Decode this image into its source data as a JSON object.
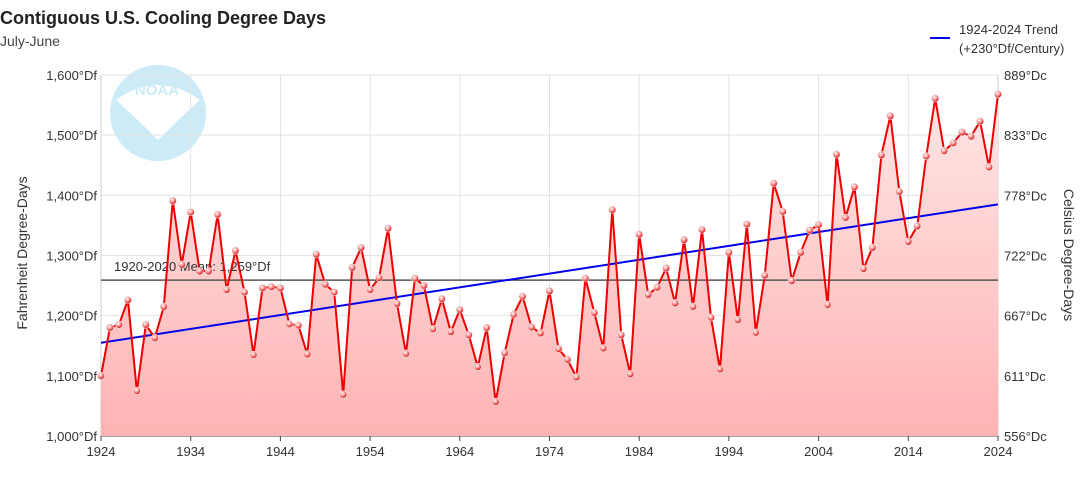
{
  "header": {
    "title": "Contiguous U.S. Cooling Degree Days",
    "subtitle": "July-June"
  },
  "legend": {
    "line1": "1924-2024 Trend",
    "line2": "(+230°Df/Century)"
  },
  "logo": {
    "text": "NOAA"
  },
  "colors": {
    "series": "#ee0000",
    "trend": "#0000ee",
    "mean": "#555555",
    "fill_top": "#ffe6e6",
    "fill_bottom": "#ffb3b3"
  },
  "chart_data": {
    "type": "line",
    "title": "Contiguous U.S. Cooling Degree Days",
    "subtitle": "July-June",
    "ylabel": "Fahrenheit Degree-Days",
    "ylabel_right": "Celsius Degree-Days",
    "xlim": [
      1924,
      2024
    ],
    "ylim": [
      1000,
      1600
    ],
    "x_ticks": [
      "1924",
      "1934",
      "1944",
      "1954",
      "1964",
      "1974",
      "1984",
      "1994",
      "2004",
      "2014",
      "2024"
    ],
    "y_ticks_left": [
      "1,000°Df",
      "1,100°Df",
      "1,200°Df",
      "1,300°Df",
      "1,400°Df",
      "1,500°Df",
      "1,600°Df"
    ],
    "y_ticks_right": [
      "556°Dc",
      "611°Dc",
      "667°Dc",
      "722°Dc",
      "778°Dc",
      "833°Dc",
      "889°Dc"
    ],
    "grid": true,
    "legend_position": "top-right",
    "mean": {
      "value": 1259,
      "label": "1920-2020 Mean: 1,259°Df"
    },
    "trend": {
      "name": "1924-2024 Trend",
      "label": "(+230°Df/Century)",
      "start": [
        1924,
        1155
      ],
      "end": [
        2024,
        1385
      ]
    },
    "series": [
      {
        "x": [
          1924,
          1925,
          1926,
          1927,
          1928,
          1929,
          1930,
          1931,
          1932,
          1933,
          1934,
          1935,
          1936,
          1937,
          1938,
          1939,
          1940,
          1941,
          1942,
          1943,
          1944,
          1945,
          1946,
          1947,
          1948,
          1949,
          1950,
          1951,
          1952,
          1953,
          1954,
          1955,
          1956,
          1957,
          1958,
          1959,
          1960,
          1961,
          1962,
          1963,
          1964,
          1965,
          1966,
          1967,
          1968,
          1969,
          1970,
          1971,
          1972,
          1973,
          1974,
          1975,
          1976,
          1977,
          1978,
          1979,
          1980,
          1981,
          1982,
          1983,
          1984,
          1985,
          1986,
          1987,
          1988,
          1989,
          1990,
          1991,
          1992,
          1993,
          1994,
          1995,
          1996,
          1997,
          1998,
          1999,
          2000,
          2001,
          2002,
          2003,
          2004,
          2005,
          2006,
          2007,
          2008,
          2009,
          2010,
          2011,
          2012,
          2013,
          2014,
          2015,
          2016,
          2017,
          2018,
          2019,
          2020,
          2021,
          2022,
          2023,
          2024
        ],
        "values": [
          1100,
          1180,
          1185,
          1226,
          1075,
          1185,
          1163,
          1215,
          1391,
          1285,
          1372,
          1274,
          1274,
          1368,
          1243,
          1308,
          1239,
          1135,
          1246,
          1248,
          1246,
          1186,
          1184,
          1136,
          1302,
          1252,
          1239,
          1069,
          1280,
          1313,
          1243,
          1263,
          1345,
          1220,
          1137,
          1262,
          1250,
          1178,
          1228,
          1173,
          1210,
          1168,
          1115,
          1180,
          1057,
          1138,
          1202,
          1232,
          1181,
          1171,
          1241,
          1145,
          1127,
          1098,
          1262,
          1205,
          1146,
          1376,
          1168,
          1103,
          1335,
          1235,
          1247,
          1279,
          1221,
          1326,
          1215,
          1343,
          1197,
          1111,
          1305,
          1193,
          1352,
          1172,
          1267,
          1420,
          1373,
          1258,
          1305,
          1342,
          1351,
          1218,
          1468,
          1363,
          1414,
          1278,
          1313,
          1467,
          1532,
          1406,
          1323,
          1349,
          1465,
          1561,
          1474,
          1487,
          1505,
          1498,
          1523,
          1447,
          1568
        ]
      }
    ]
  }
}
